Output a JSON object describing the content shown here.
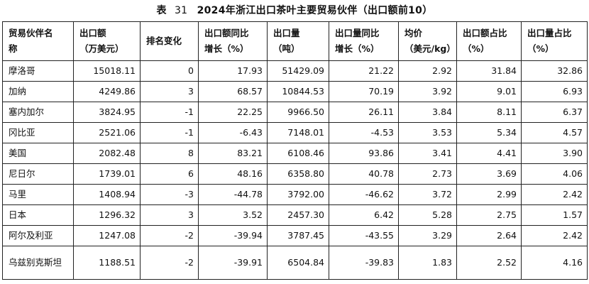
{
  "caption": {
    "label": "表",
    "number": "31",
    "title": "2024年浙江出口茶叶主要贸易伙伴（出口额前10）"
  },
  "headers": [
    [
      "贸易伙伴名",
      "称"
    ],
    [
      "出口额",
      "（万美元）"
    ],
    [
      "排名变化",
      ""
    ],
    [
      "出口额同比",
      "增长（%）"
    ],
    [
      "出口量",
      "（吨）"
    ],
    [
      "出口量同比",
      "增长（%）"
    ],
    [
      "均价",
      "（美元/kg）"
    ],
    [
      "出口额占比",
      "（%）"
    ],
    [
      "出口量占比",
      "（%）"
    ]
  ],
  "rows": [
    [
      "摩洛哥",
      "15018.11",
      "0",
      "17.93",
      "51429.09",
      "21.22",
      "2.92",
      "31.84",
      "32.86"
    ],
    [
      "加纳",
      "4249.86",
      "3",
      "68.57",
      "10844.53",
      "70.19",
      "3.92",
      "9.01",
      "6.93"
    ],
    [
      "塞内加尔",
      "3824.95",
      "-1",
      "22.25",
      "9966.50",
      "26.11",
      "3.84",
      "8.11",
      "6.37"
    ],
    [
      "冈比亚",
      "2521.06",
      "-1",
      "-6.43",
      "7148.01",
      "-4.53",
      "3.53",
      "5.34",
      "4.57"
    ],
    [
      "美国",
      "2082.48",
      "8",
      "83.21",
      "6108.46",
      "93.86",
      "3.41",
      "4.41",
      "3.90"
    ],
    [
      "尼日尔",
      "1739.01",
      "6",
      "48.16",
      "6358.80",
      "40.78",
      "2.73",
      "3.69",
      "4.06"
    ],
    [
      "马里",
      "1408.94",
      "-3",
      "-44.78",
      "3792.00",
      "-46.62",
      "3.72",
      "2.99",
      "2.42"
    ],
    [
      "日本",
      "1296.32",
      "3",
      "3.52",
      "2457.30",
      "6.42",
      "5.28",
      "2.75",
      "1.57"
    ],
    [
      "阿尔及利亚",
      "1247.08",
      "-2",
      "-39.94",
      "3787.45",
      "-43.55",
      "3.29",
      "2.64",
      "2.42"
    ],
    [
      "乌兹别克斯坦",
      "1188.51",
      "-2",
      "-39.91",
      "6504.84",
      "-39.83",
      "1.83",
      "2.52",
      "4.16"
    ]
  ]
}
